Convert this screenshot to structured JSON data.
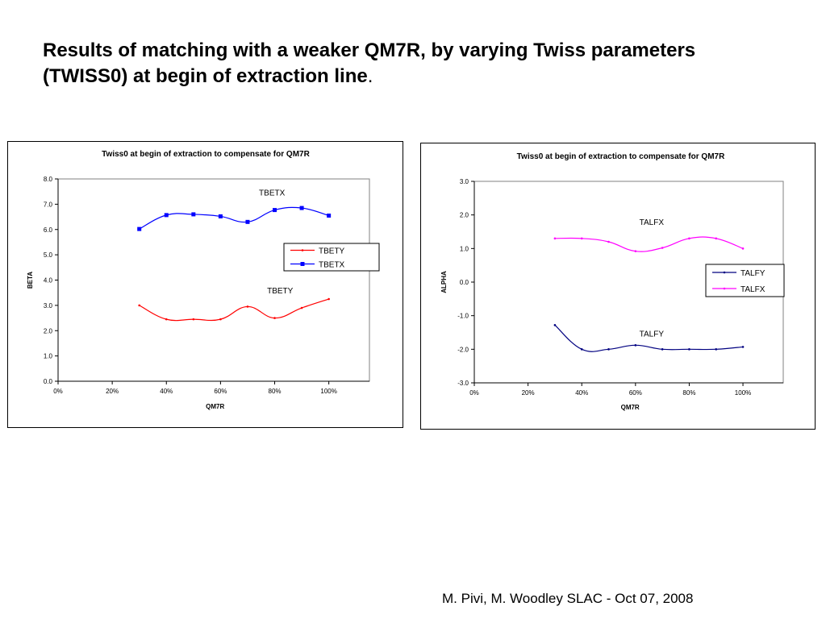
{
  "slide": {
    "title_line1": "Results of matching with a weaker QM7R, by varying Twiss parameters",
    "title_line2": "(TWISS0) at begin of extraction line",
    "title_end": ".",
    "footer": "M. Pivi, M. Woodley SLAC - Oct 07, 2008"
  },
  "chart_data": [
    {
      "type": "line",
      "title": "Twiss0 at begin of extraction to compensate for QM7R",
      "xlabel": "QM7R",
      "ylabel": "BETA",
      "xlim": [
        0,
        1.15
      ],
      "ylim": [
        0,
        8
      ],
      "x_ticks": [
        0,
        0.2,
        0.4,
        0.6,
        0.8,
        1.0
      ],
      "x_tick_labels": [
        "0%",
        "20%",
        "40%",
        "60%",
        "80%",
        "100%"
      ],
      "y_ticks": [
        0,
        1,
        2,
        3,
        4,
        5,
        6,
        7,
        8
      ],
      "y_tick_labels": [
        "0.0",
        "1.0",
        "2.0",
        "3.0",
        "4.0",
        "5.0",
        "6.0",
        "7.0",
        "8.0"
      ],
      "legend_position": "right",
      "legend": [
        "TBETY",
        "TBETX"
      ],
      "x": [
        0.3,
        0.4,
        0.5,
        0.6,
        0.7,
        0.8,
        0.9,
        1.0
      ],
      "series": [
        {
          "name": "TBETY",
          "color": "#ff0000",
          "marker": "small",
          "values": [
            3.0,
            2.45,
            2.45,
            2.45,
            2.95,
            2.5,
            2.9,
            3.25
          ]
        },
        {
          "name": "TBETX",
          "color": "#0000ff",
          "marker": "square",
          "values": [
            6.02,
            6.57,
            6.6,
            6.52,
            6.3,
            6.77,
            6.85,
            6.55
          ]
        }
      ],
      "annotations": [
        {
          "text": "TBETX",
          "x": 0.79,
          "y": 7.35
        },
        {
          "text": "TBETY",
          "x": 0.82,
          "y": 3.48
        }
      ]
    },
    {
      "type": "line",
      "title": "Twiss0 at begin of extraction  to compensate for QM7R",
      "xlabel": "QM7R",
      "ylabel": "ALPHA",
      "xlim": [
        0,
        1.15
      ],
      "ylim": [
        -3,
        3
      ],
      "x_ticks": [
        0,
        0.2,
        0.4,
        0.6,
        0.8,
        1.0
      ],
      "x_tick_labels": [
        "0%",
        "20%",
        "40%",
        "60%",
        "80%",
        "100%"
      ],
      "y_ticks": [
        -3,
        -2,
        -1,
        0,
        1,
        2,
        3
      ],
      "y_tick_labels": [
        "-3.0",
        "-2.0",
        "-1.0",
        "0.0",
        "1.0",
        "2.0",
        "3.0"
      ],
      "legend_position": "right",
      "legend": [
        "TALFY",
        "TALFX"
      ],
      "x": [
        0.3,
        0.4,
        0.5,
        0.6,
        0.7,
        0.8,
        0.9,
        1.0
      ],
      "series": [
        {
          "name": "TALFY",
          "color": "#000080",
          "marker": "small",
          "values": [
            -1.28,
            -2.0,
            -2.0,
            -1.88,
            -2.0,
            -2.0,
            -2.0,
            -1.93
          ]
        },
        {
          "name": "TALFX",
          "color": "#ff00ff",
          "marker": "small",
          "values": [
            1.3,
            1.3,
            1.2,
            0.92,
            1.02,
            1.3,
            1.3,
            1.0
          ]
        }
      ],
      "annotations": [
        {
          "text": "TALFX",
          "x": 0.66,
          "y": 1.7
        },
        {
          "text": "TALFY",
          "x": 0.66,
          "y": -1.62
        }
      ]
    }
  ]
}
